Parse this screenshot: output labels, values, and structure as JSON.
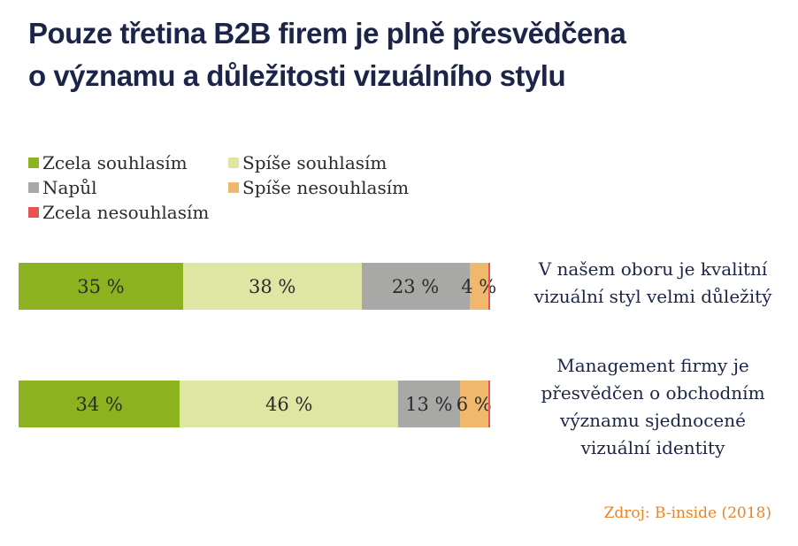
{
  "title_line1": "Pouze třetina B2B firem je plně přesvědčena",
  "title_line2": "o významu a důležitosti vizuálního stylu",
  "source": "Zdroj: B-inside (2018)",
  "chart_data": {
    "type": "bar",
    "stacked": true,
    "orientation": "horizontal",
    "categories": [
      "V našem oboru je kvalitní vizuální styl velmi důležitý",
      "Management firmy je přesvědčen o obchodním významu sjednocené vizuální identity"
    ],
    "category_lines": [
      [
        "V našem oboru je kvalitní",
        "vizuální styl velmi důležitý"
      ],
      [
        "Management firmy je",
        "přesvědčen o obchodním",
        "významu sjednocené",
        "vizuální identity"
      ]
    ],
    "series": [
      {
        "name": "Zcela souhlasím",
        "color": "#8cb31f",
        "values": [
          35,
          34
        ],
        "labels": [
          "35 %",
          "34 %"
        ]
      },
      {
        "name": "Spíše souhlasím",
        "color": "#dfe6a4",
        "values": [
          38,
          46
        ],
        "labels": [
          "38 %",
          "46 %"
        ]
      },
      {
        "name": "Napůl",
        "color": "#a8a9a6",
        "values": [
          23,
          13
        ],
        "labels": [
          "23 %",
          "13 %"
        ]
      },
      {
        "name": "Spíše nesouhlasím",
        "color": "#f0b86c",
        "values": [
          4,
          6
        ],
        "labels": [
          "4 %",
          "6 %"
        ]
      },
      {
        "name": "Zcela nesouhlasím",
        "color": "#e8524f",
        "values": [
          0.4,
          0.4
        ],
        "labels": [
          "",
          ""
        ]
      }
    ],
    "unit": "%",
    "legend_position": "top-left",
    "grid": false
  }
}
